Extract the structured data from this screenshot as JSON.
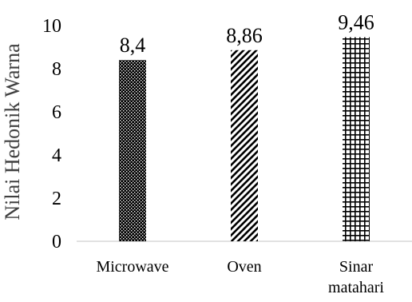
{
  "chart_data": {
    "type": "bar",
    "title": "",
    "xlabel": "",
    "ylabel": "Nilai Hedonik Warna",
    "ylim": [
      0,
      10
    ],
    "yticks": [
      "0",
      "2",
      "4",
      "6",
      "8",
      "10"
    ],
    "categories": [
      [
        "Microwave"
      ],
      [
        "Oven"
      ],
      [
        "Sinar",
        "matahari"
      ]
    ],
    "values": [
      8.4,
      8.86,
      9.46
    ],
    "value_labels": [
      "8,4",
      "8,86",
      "9,46"
    ],
    "patterns": [
      "dots",
      "diagonal-stripes",
      "grid"
    ],
    "grid": false,
    "legend": "none",
    "colors": {
      "bar": "#000000",
      "background": "#ffffff",
      "axis": "#d9d9d9",
      "axis_title": "#404040"
    }
  }
}
